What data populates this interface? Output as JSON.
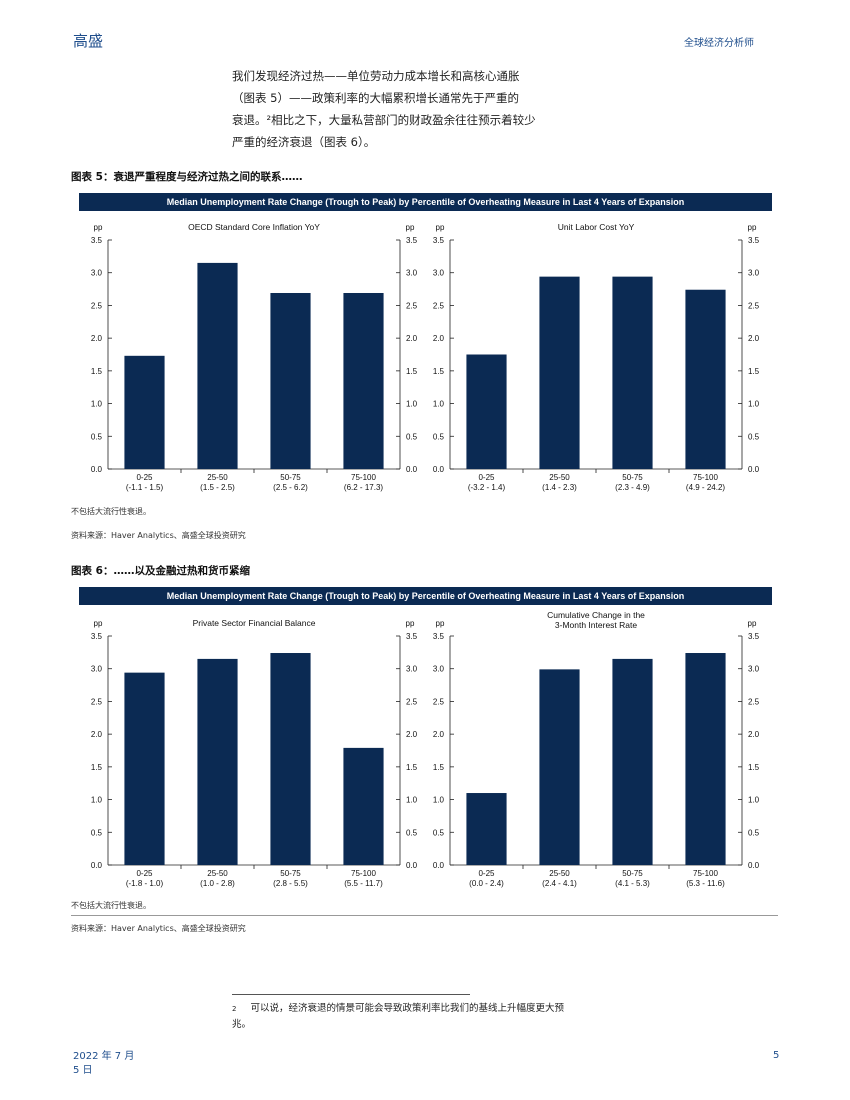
{
  "header": {
    "brand": "高盛",
    "section": "全球经济分析师"
  },
  "body_text": {
    "line1": "我们发现经济过热——单位劳动力成本增长和高核心通胀",
    "line2": "（图表 5）——政策利率的大幅累积增长通常先于严重的",
    "line3": "衰退。²相比之下，大量私营部门的财政盈余往往预示着较少",
    "line4": "严重的经济衰退（图表 6）。"
  },
  "figure5": {
    "title": "图表 5：衰退严重程度与经济过热之间的联系……",
    "banner": "Median Unemployment Rate Change (Trough to Peak) by Percentile of Overheating Measure in Last 4 Years of Expansion",
    "note": "不包括大流行性衰退。",
    "source": "资料来源：Haver Analytics、高盛全球投资研究"
  },
  "figure6": {
    "title": "图表 6：……以及金融过热和货币紧缩",
    "banner": "Median Unemployment Rate Change (Trough to Peak) by Percentile of Overheating Measure in Last 4 Years of Expansion",
    "note": "不包括大流行性衰退。",
    "source": "资料来源：Haver Analytics、高盛全球投资研究"
  },
  "footnote": {
    "num": "2",
    "text": "可以说，经济衰退的情景可能会导致政策利率比我们的基线上升幅度更大预兆。"
  },
  "footer": {
    "date": "2022 年 7 月 5 日",
    "page": "5"
  },
  "colors": {
    "bar": "#0b2a53",
    "banner": "#0b2a53",
    "brand": "#1f4e8c"
  },
  "chart_data": [
    {
      "type": "bar",
      "title": "OECD Standard Core Inflation YoY",
      "ylabel_left": "pp",
      "ylabel_right": "pp",
      "ylim": [
        0,
        3.5
      ],
      "yticks": [
        "0.0",
        "0.5",
        "1.0",
        "1.5",
        "2.0",
        "2.5",
        "3.0",
        "3.5"
      ],
      "categories": [
        "0-25",
        "25-50",
        "50-75",
        "75-100"
      ],
      "ranges": [
        "(-1.1 - 1.5)",
        "(1.5 - 2.5)",
        "(2.5 - 6.2)",
        "(6.2 - 17.3)"
      ],
      "values": [
        1.73,
        3.15,
        2.69,
        2.69
      ]
    },
    {
      "type": "bar",
      "title": "Unit Labor Cost YoY",
      "ylabel_left": "pp",
      "ylabel_right": "pp",
      "ylim": [
        0,
        3.5
      ],
      "yticks": [
        "0.0",
        "0.5",
        "1.0",
        "1.5",
        "2.0",
        "2.5",
        "3.0",
        "3.5"
      ],
      "categories": [
        "0-25",
        "25-50",
        "50-75",
        "75-100"
      ],
      "ranges": [
        "(-3.2 - 1.4)",
        "(1.4 - 2.3)",
        "(2.3 - 4.9)",
        "(4.9 - 24.2)"
      ],
      "values": [
        1.75,
        2.94,
        2.94,
        2.74
      ]
    },
    {
      "type": "bar",
      "title": "Private Sector Financial Balance",
      "ylabel_left": "pp",
      "ylabel_right": "pp",
      "ylim": [
        0,
        3.5
      ],
      "yticks": [
        "0.0",
        "0.5",
        "1.0",
        "1.5",
        "2.0",
        "2.5",
        "3.0",
        "3.5"
      ],
      "categories": [
        "0-25",
        "25-50",
        "50-75",
        "75-100"
      ],
      "ranges": [
        "(-1.8 - 1.0)",
        "(1.0 - 2.8)",
        "(2.8 - 5.5)",
        "(5.5 - 11.7)"
      ],
      "values": [
        2.94,
        3.15,
        3.24,
        1.79
      ]
    },
    {
      "type": "bar",
      "title": "Cumulative Change in the 3-Month Interest Rate",
      "title_lines": [
        "Cumulative Change in the",
        "3-Month Interest Rate"
      ],
      "ylabel_left": "pp",
      "ylabel_right": "pp",
      "ylim": [
        0,
        3.5
      ],
      "yticks": [
        "0.0",
        "0.5",
        "1.0",
        "1.5",
        "2.0",
        "2.5",
        "3.0",
        "3.5"
      ],
      "categories": [
        "0-25",
        "25-50",
        "50-75",
        "75-100"
      ],
      "ranges": [
        "(0.0 - 2.4)",
        "(2.4 - 4.1)",
        "(4.1 - 5.3)",
        "(5.3 - 11.6)"
      ],
      "values": [
        1.1,
        2.99,
        3.15,
        3.24
      ]
    }
  ]
}
